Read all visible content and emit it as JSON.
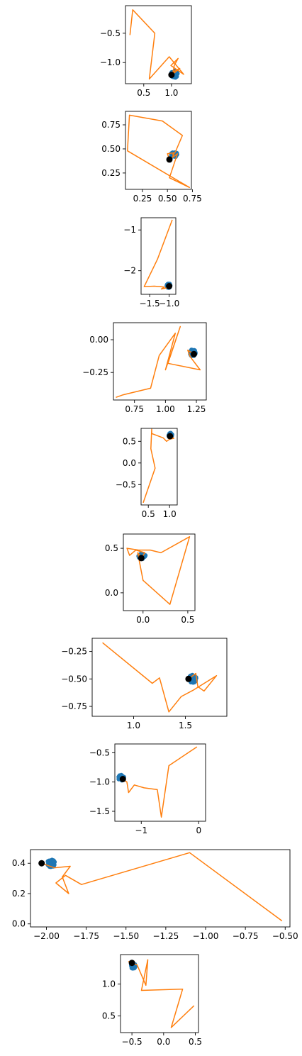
{
  "colors": {
    "cluster": "#1f77b4",
    "path": "#ff7f0e",
    "center": "#000000",
    "frame": "#000000"
  },
  "chart_data": [
    {
      "type": "line",
      "xlim": [
        0.17,
        1.36
      ],
      "ylim": [
        -1.36,
        -0.03
      ],
      "xticks": [
        {
          "v": 0.5,
          "label": "0.5"
        },
        {
          "v": 1.0,
          "label": "1.0"
        }
      ],
      "yticks": [
        {
          "v": -0.5,
          "label": "−0.5"
        },
        {
          "v": -1.0,
          "label": "−1.0"
        }
      ],
      "cluster": {
        "center": [
          1.05,
          -1.2
        ],
        "spread": [
          0.06,
          0.06
        ]
      },
      "center_point": [
        1.0,
        -1.21
      ],
      "path": [
        [
          1.0,
          -1.21
        ],
        [
          1.06,
          -1.14
        ],
        [
          1.15,
          -1.1
        ],
        [
          1.02,
          -1.2
        ],
        [
          1.05,
          -1.05
        ],
        [
          1.12,
          -0.93
        ],
        [
          0.99,
          -1.05
        ],
        [
          1.22,
          -1.2
        ],
        [
          0.96,
          -0.9
        ],
        [
          0.6,
          -1.28
        ],
        [
          0.7,
          -0.5
        ],
        [
          0.3,
          -0.1
        ],
        [
          0.25,
          -0.53
        ]
      ]
    },
    {
      "type": "line",
      "xlim": [
        0.08,
        0.74
      ],
      "ylim": [
        0.08,
        0.89
      ],
      "xticks": [
        {
          "v": 0.25,
          "label": "0.25"
        },
        {
          "v": 0.5,
          "label": "0.50"
        },
        {
          "v": 0.75,
          "label": "0.75"
        }
      ],
      "yticks": [
        {
          "v": 0.25,
          "label": "0.25"
        },
        {
          "v": 0.5,
          "label": "0.50"
        },
        {
          "v": 0.75,
          "label": "0.75"
        }
      ],
      "cluster": {
        "center": [
          0.57,
          0.44
        ],
        "spread": [
          0.035,
          0.025
        ]
      },
      "center_point": [
        0.52,
        0.39
      ],
      "path": [
        [
          0.52,
          0.39
        ],
        [
          0.5,
          0.45
        ],
        [
          0.57,
          0.46
        ],
        [
          0.55,
          0.41
        ],
        [
          0.6,
          0.45
        ],
        [
          0.52,
          0.2
        ],
        [
          0.72,
          0.1
        ],
        [
          0.1,
          0.48
        ],
        [
          0.12,
          0.85
        ],
        [
          0.45,
          0.79
        ],
        [
          0.65,
          0.64
        ],
        [
          0.58,
          0.47
        ],
        [
          0.55,
          0.44
        ]
      ]
    },
    {
      "type": "line",
      "xlim": [
        -1.72,
        -0.83
      ],
      "ylim": [
        -2.58,
        -0.7
      ],
      "xticks": [
        {
          "v": -1.5,
          "label": "−1.5"
        },
        {
          "v": -1.0,
          "label": "−1.0"
        }
      ],
      "yticks": [
        {
          "v": -1.0,
          "label": "−1"
        },
        {
          "v": -2.0,
          "label": "−2"
        }
      ],
      "cluster": {
        "center": [
          -1.01,
          -2.37
        ],
        "spread": [
          0.05,
          0.05
        ]
      },
      "center_point": [
        -1.0,
        -2.38
      ],
      "path": [
        [
          -1.0,
          -2.38
        ],
        [
          -1.05,
          -2.42
        ],
        [
          -1.2,
          -2.45
        ],
        [
          -1.12,
          -2.4
        ],
        [
          -1.38,
          -2.38
        ],
        [
          -1.64,
          -2.39
        ],
        [
          -1.3,
          -1.72
        ],
        [
          -0.92,
          -0.75
        ]
      ]
    },
    {
      "type": "line",
      "xlim": [
        0.58,
        1.33
      ],
      "ylim": [
        -0.46,
        0.13
      ],
      "xticks": [
        {
          "v": 0.75,
          "label": "0.75"
        },
        {
          "v": 1.0,
          "label": "1.00"
        },
        {
          "v": 1.25,
          "label": "1.25"
        }
      ],
      "yticks": [
        {
          "v": 0.0,
          "label": "0.00"
        },
        {
          "v": -0.25,
          "label": "−0.25"
        }
      ],
      "cluster": {
        "center": [
          1.22,
          -0.1
        ],
        "spread": [
          0.025,
          0.025
        ]
      },
      "center_point": [
        1.23,
        -0.11
      ],
      "path": [
        [
          1.23,
          -0.11
        ],
        [
          1.18,
          -0.08
        ],
        [
          1.2,
          -0.13
        ],
        [
          1.28,
          -0.23
        ],
        [
          1.02,
          -0.18
        ],
        [
          1.12,
          0.1
        ],
        [
          1.0,
          -0.23
        ],
        [
          1.08,
          0.05
        ],
        [
          0.95,
          -0.12
        ],
        [
          0.88,
          -0.37
        ],
        [
          0.66,
          -0.42
        ],
        [
          0.6,
          -0.44
        ]
      ]
    },
    {
      "type": "line",
      "xlim": [
        0.33,
        1.18
      ],
      "ylim": [
        -0.97,
        0.8
      ],
      "xticks": [
        {
          "v": 0.5,
          "label": "0.5"
        },
        {
          "v": 1.0,
          "label": "1.0"
        }
      ],
      "yticks": [
        {
          "v": 0.5,
          "label": "0.5"
        },
        {
          "v": 0.0,
          "label": "0.0"
        },
        {
          "v": -0.5,
          "label": "−0.5"
        }
      ],
      "cluster": {
        "center": [
          1.02,
          0.64
        ],
        "spread": [
          0.04,
          0.05
        ]
      },
      "center_point": [
        1.01,
        0.62
      ],
      "path": [
        [
          1.01,
          0.62
        ],
        [
          1.1,
          0.57
        ],
        [
          1.0,
          0.55
        ],
        [
          0.93,
          0.5
        ],
        [
          0.85,
          0.58
        ],
        [
          0.58,
          0.68
        ],
        [
          0.58,
          0.78
        ],
        [
          0.56,
          0.33
        ],
        [
          0.66,
          -0.12
        ],
        [
          0.38,
          -0.92
        ]
      ]
    },
    {
      "type": "line",
      "xlim": [
        -0.22,
        0.58
      ],
      "ylim": [
        -0.2,
        0.66
      ],
      "xticks": [
        {
          "v": 0.0,
          "label": "0.0"
        },
        {
          "v": 0.5,
          "label": "0.5"
        }
      ],
      "yticks": [
        {
          "v": 0.5,
          "label": "0.5"
        },
        {
          "v": 0.0,
          "label": "0.0"
        }
      ],
      "cluster": {
        "center": [
          -0.01,
          0.41
        ],
        "spread": [
          0.04,
          0.03
        ]
      },
      "center_point": [
        -0.02,
        0.39
      ],
      "path": [
        [
          -0.02,
          0.39
        ],
        [
          0.02,
          0.45
        ],
        [
          -0.08,
          0.48
        ],
        [
          -0.15,
          0.42
        ],
        [
          -0.18,
          0.5
        ],
        [
          -0.05,
          0.48
        ],
        [
          0.08,
          0.48
        ],
        [
          0.2,
          0.45
        ],
        [
          0.52,
          0.63
        ],
        [
          0.3,
          -0.13
        ],
        [
          0.0,
          0.14
        ],
        [
          -0.06,
          0.45
        ],
        [
          -0.02,
          0.4
        ]
      ]
    },
    {
      "type": "line",
      "xlim": [
        0.6,
        1.9
      ],
      "ylim": [
        -0.84,
        -0.13
      ],
      "xticks": [
        {
          "v": 1.0,
          "label": "1.0"
        },
        {
          "v": 1.5,
          "label": "1.5"
        }
      ],
      "yticks": [
        {
          "v": -0.25,
          "label": "−0.25"
        },
        {
          "v": -0.5,
          "label": "−0.50"
        },
        {
          "v": -0.75,
          "label": "−0.75"
        }
      ],
      "cluster": {
        "center": [
          1.57,
          -0.5
        ],
        "spread": [
          0.035,
          0.035
        ]
      },
      "center_point": [
        1.53,
        -0.5
      ],
      "path": [
        [
          1.53,
          -0.5
        ],
        [
          1.6,
          -0.45
        ],
        [
          1.62,
          -0.57
        ],
        [
          1.68,
          -0.61
        ],
        [
          1.8,
          -0.47
        ],
        [
          1.58,
          -0.6
        ],
        [
          1.46,
          -0.66
        ],
        [
          1.34,
          -0.8
        ],
        [
          1.25,
          -0.49
        ],
        [
          1.18,
          -0.54
        ],
        [
          0.7,
          -0.17
        ]
      ]
    },
    {
      "type": "line",
      "xlim": [
        -1.46,
        0.12
      ],
      "ylim": [
        -1.67,
        -0.35
      ],
      "xticks": [
        {
          "v": -1.0,
          "label": "−1"
        },
        {
          "v": 0.0,
          "label": "0"
        }
      ],
      "yticks": [
        {
          "v": -0.5,
          "label": "−0.5"
        },
        {
          "v": -1.0,
          "label": "−1.0"
        },
        {
          "v": -1.5,
          "label": "−1.5"
        }
      ],
      "cluster": {
        "center": [
          -1.35,
          -0.93
        ],
        "spread": [
          0.05,
          0.05
        ]
      },
      "center_point": [
        -1.32,
        -0.95
      ],
      "path": [
        [
          -1.32,
          -0.95
        ],
        [
          -1.25,
          -1.0
        ],
        [
          -1.22,
          -1.18
        ],
        [
          -1.12,
          -1.05
        ],
        [
          -0.95,
          -1.1
        ],
        [
          -0.72,
          -1.13
        ],
        [
          -0.65,
          -1.6
        ],
        [
          -0.52,
          -0.72
        ],
        [
          -0.03,
          -0.4
        ]
      ]
    },
    {
      "type": "line",
      "xlim": [
        -2.1,
        -0.47
      ],
      "ylim": [
        -0.02,
        0.49
      ],
      "xticks": [
        {
          "v": -2.0,
          "label": "−2.00"
        },
        {
          "v": -1.75,
          "label": "−1.75"
        },
        {
          "v": -1.5,
          "label": "−1.50"
        },
        {
          "v": -1.25,
          "label": "−1.25"
        },
        {
          "v": -1.0,
          "label": "−1.00"
        },
        {
          "v": -0.75,
          "label": "−0.75"
        },
        {
          "v": -0.5,
          "label": "−0.50"
        }
      ],
      "yticks": [
        {
          "v": 0.4,
          "label": "0.4"
        },
        {
          "v": 0.2,
          "label": "0.2"
        },
        {
          "v": 0.0,
          "label": "0.0"
        }
      ],
      "cluster": {
        "center": [
          -1.97,
          0.4
        ],
        "spread": [
          0.025,
          0.025
        ]
      },
      "center_point": [
        -2.03,
        0.4
      ],
      "path": [
        [
          -2.03,
          0.4
        ],
        [
          -1.95,
          0.37
        ],
        [
          -1.85,
          0.38
        ],
        [
          -1.9,
          0.31
        ],
        [
          -1.86,
          0.2
        ],
        [
          -1.94,
          0.27
        ],
        [
          -1.88,
          0.32
        ],
        [
          -1.78,
          0.26
        ],
        [
          -1.1,
          0.47
        ],
        [
          -0.52,
          0.02
        ]
      ]
    },
    {
      "type": "line",
      "xlim": [
        -0.68,
        0.55
      ],
      "ylim": [
        0.24,
        1.46
      ],
      "xticks": [
        {
          "v": -0.5,
          "label": "−0.5"
        },
        {
          "v": 0.0,
          "label": "0.0"
        },
        {
          "v": 0.5,
          "label": "0.5"
        }
      ],
      "yticks": [
        {
          "v": 1.0,
          "label": "1.0"
        },
        {
          "v": 0.5,
          "label": "0.5"
        }
      ],
      "cluster": {
        "center": [
          -0.48,
          1.28
        ],
        "spread": [
          0.035,
          0.04
        ]
      },
      "center_point": [
        -0.5,
        1.33
      ],
      "path": [
        [
          -0.5,
          1.33
        ],
        [
          -0.55,
          1.35
        ],
        [
          -0.42,
          1.3
        ],
        [
          -0.28,
          0.98
        ],
        [
          -0.25,
          1.38
        ],
        [
          -0.35,
          0.9
        ],
        [
          0.3,
          0.92
        ],
        [
          0.12,
          0.32
        ],
        [
          0.48,
          0.66
        ]
      ]
    }
  ]
}
